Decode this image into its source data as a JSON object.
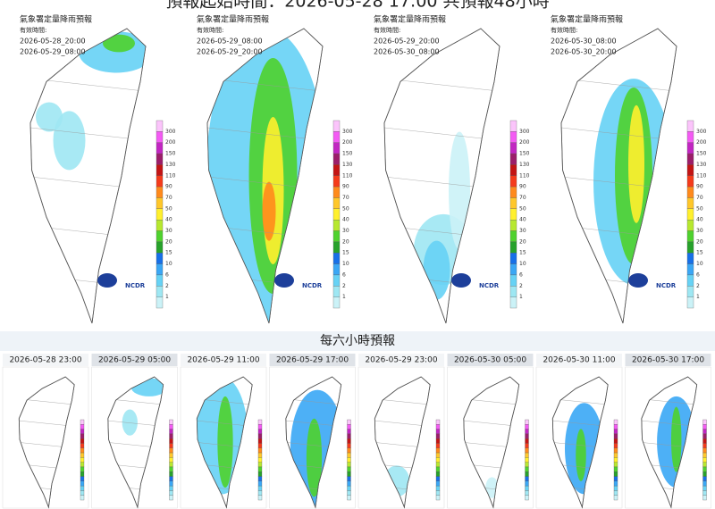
{
  "header": {
    "title": "預報起始時間：2026-05-28 17:00 共預報48小時"
  },
  "map_label": {
    "agency": "氣象署定量降雨預報",
    "valid": "有效時間:"
  },
  "logo": {
    "text": "NCDR"
  },
  "legend": {
    "ticks": [
      "300",
      "200",
      "150",
      "130",
      "110",
      "90",
      "70",
      "50",
      "40",
      "30",
      "20",
      "15",
      "10",
      "6",
      "2",
      "1"
    ]
  },
  "panels_12h": [
    {
      "start": "2026-05-28_20:00",
      "end": "2026-05-29_08:00"
    },
    {
      "start": "2026-05-29_08:00",
      "end": "2026-05-29_20:00"
    },
    {
      "start": "2026-05-29_20:00",
      "end": "2026-05-30_08:00"
    },
    {
      "start": "2026-05-30_08:00",
      "end": "2026-05-30_20:00"
    }
  ],
  "section_6h": {
    "title": "每六小時預報",
    "panels": [
      "2026-05-28 23:00",
      "2026-05-29 05:00",
      "2026-05-29 11:00",
      "2026-05-29 17:00",
      "2026-05-29 23:00",
      "2026-05-30 05:00",
      "2026-05-30 11:00",
      "2026-05-30 17:00"
    ]
  }
}
